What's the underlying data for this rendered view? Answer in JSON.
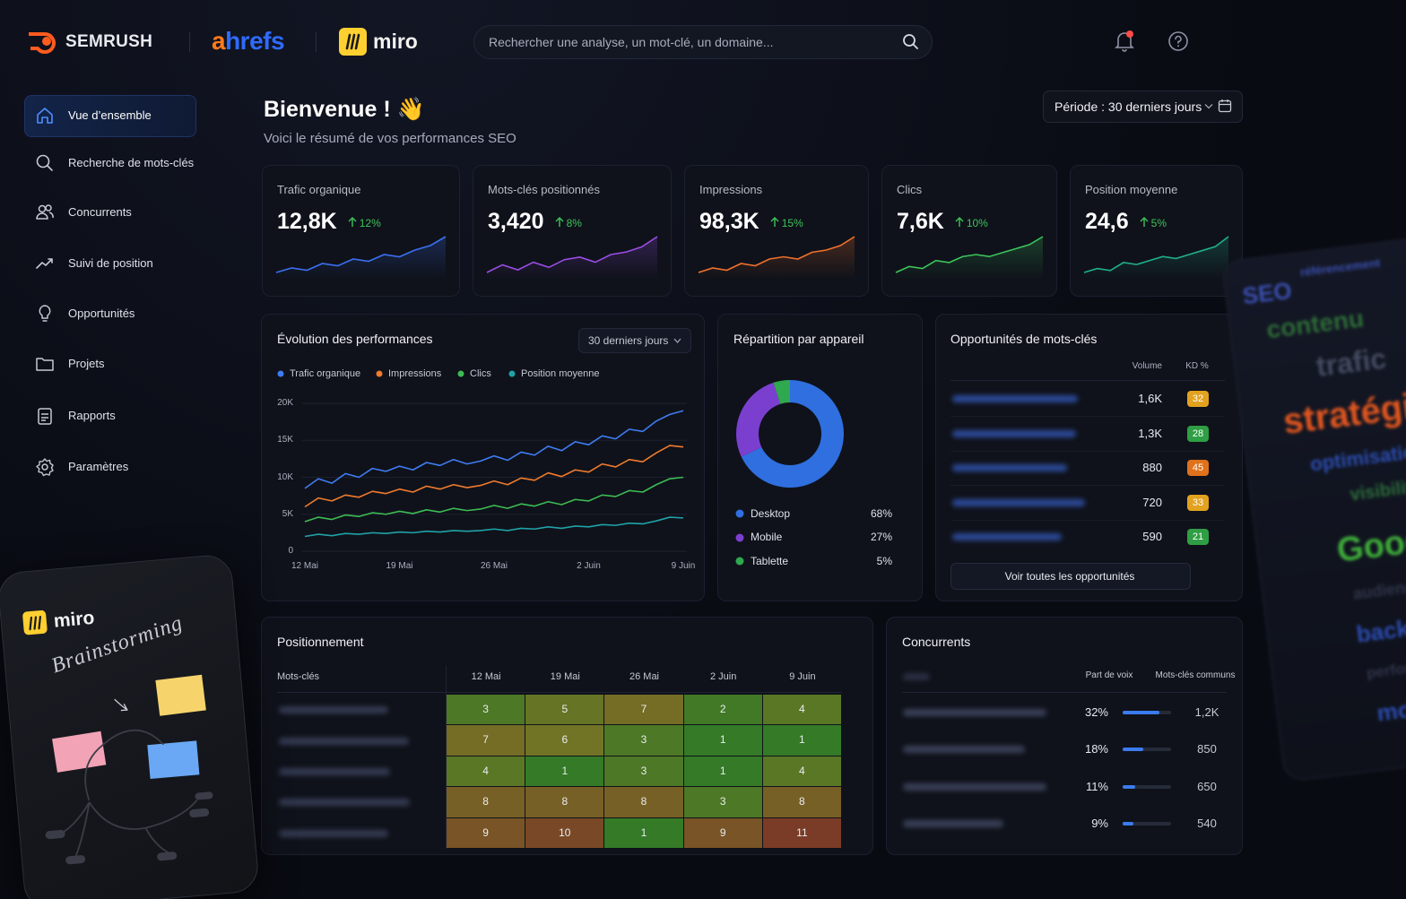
{
  "brands": [
    "SEMRUSH",
    "ahrefs",
    "miro"
  ],
  "search_placeholder": "Rechercher une analyse, un mot-clé, un domaine...",
  "nav": [
    "Vue d’ensemble",
    "Recherche de mots-clés",
    "Concurrents",
    "Suivi de position",
    "Opportunités",
    "Projets",
    "Rapports",
    "Paramètres"
  ],
  "header": {
    "title": "Bienvenue ! 👋",
    "subtitle": "Voici le résumé de vos performances SEO",
    "period": "Période : 30 derniers jours"
  },
  "kpis": [
    {
      "label": "Trafic organique",
      "value": 12800,
      "value_label": "12,8K",
      "change": 12,
      "change_label": "12%",
      "color": "#3b6ff0",
      "trend": [
        5,
        6,
        5.5,
        7,
        6.5,
        8,
        7.5,
        9,
        8.5,
        10,
        11,
        13
      ]
    },
    {
      "label": "Mots-clés positionnés",
      "value": 3420,
      "value_label": "3,420",
      "change": 8,
      "change_label": "8%",
      "color": "#9b4de8",
      "trend": [
        5,
        6.5,
        5.5,
        7,
        6,
        7.5,
        8,
        7,
        8.5,
        9,
        10,
        12
      ]
    },
    {
      "label": "Impressions",
      "value": 98300,
      "value_label": "98,3K",
      "change": 15,
      "change_label": "15%",
      "color": "#f0702a",
      "trend": [
        4,
        5,
        4.5,
        6,
        5.5,
        7,
        7.5,
        7,
        8.5,
        9,
        10,
        12
      ]
    },
    {
      "label": "Clics",
      "value": 7600,
      "value_label": "7,6K",
      "change": 10,
      "change_label": "10%",
      "color": "#3cc45a",
      "trend": [
        4,
        5.5,
        5,
        7,
        6.5,
        8,
        8.5,
        8,
        9,
        10,
        11,
        13
      ]
    },
    {
      "label": "Position moyenne",
      "value": 24.6,
      "value_label": "24,6",
      "change": 5,
      "change_label": "5%",
      "color": "#1fb08a",
      "trend": [
        4,
        5,
        4.5,
        6.5,
        6,
        7,
        8,
        7.5,
        8.5,
        9.5,
        10.5,
        13
      ]
    }
  ],
  "chart_data": [
    {
      "type": "line",
      "title": "Évolution des performances",
      "range_selector": "30 derniers jours",
      "categories": [
        "12 Mai",
        null,
        null,
        null,
        null,
        null,
        null,
        "19 Mai",
        null,
        null,
        null,
        null,
        null,
        null,
        "26 Mai",
        null,
        null,
        null,
        null,
        null,
        null,
        "2 Juin",
        null,
        null,
        null,
        null,
        null,
        null,
        "9 Juin"
      ],
      "series": [
        {
          "name": "Trafic organique",
          "color": "#3f7cf4",
          "values": [
            8500,
            9800,
            9200,
            10500,
            10000,
            11200,
            10800,
            11500,
            11000,
            12000,
            11600,
            12400,
            11800,
            12200,
            12900,
            12300,
            13400,
            13000,
            14200,
            13600,
            14800,
            14400,
            15600,
            15200,
            16500,
            16200,
            17600,
            18500,
            19000
          ]
        },
        {
          "name": "Impressions",
          "color": "#f07a2e",
          "values": [
            6000,
            7200,
            6800,
            7600,
            7300,
            8100,
            7800,
            8400,
            8000,
            8800,
            8400,
            9000,
            8600,
            8900,
            9500,
            9000,
            9900,
            9600,
            10600,
            10100,
            11000,
            10700,
            11800,
            11400,
            12400,
            12100,
            13300,
            14300,
            14100
          ]
        },
        {
          "name": "Clics",
          "color": "#3dbb54",
          "values": [
            4000,
            4600,
            4300,
            4900,
            4700,
            5200,
            5000,
            5400,
            5100,
            5600,
            5300,
            5800,
            5500,
            5700,
            6200,
            5800,
            6400,
            6100,
            6700,
            6300,
            7000,
            6800,
            7600,
            7400,
            8200,
            8000,
            9000,
            9800,
            10000
          ]
        },
        {
          "name": "Position moyenne",
          "color": "#1fa3a8",
          "values": [
            2000,
            2300,
            2100,
            2400,
            2300,
            2500,
            2400,
            2600,
            2500,
            2700,
            2600,
            2800,
            2700,
            2800,
            3000,
            2800,
            3100,
            3000,
            3300,
            3100,
            3400,
            3300,
            3600,
            3500,
            3800,
            3700,
            4100,
            4600,
            4500
          ]
        }
      ],
      "ylim": [
        0,
        20000
      ],
      "yticks": [
        0,
        {
          "value": 5000,
          "label": "5K"
        },
        {
          "value": 10000,
          "label": "10K"
        },
        {
          "value": 15000,
          "label": "15K"
        },
        {
          "value": 20000,
          "label": "20K"
        }
      ],
      "grid": true
    },
    {
      "type": "pie",
      "title": "Répartition par appareil",
      "donut": true,
      "categories": [
        "Desktop",
        "Mobile",
        "Tablette"
      ],
      "values": [
        68,
        27,
        5
      ],
      "value_labels": [
        "68%",
        "27%",
        "5%"
      ],
      "colors": [
        "#2f6fe0",
        "#7b3fd0",
        "#2fa84f"
      ]
    }
  ],
  "keyword_opportunities": {
    "title": "Opportunités de mots-clés",
    "columns": [
      "Volume",
      "KD %"
    ],
    "rows": [
      {
        "volume": 1600,
        "volume_label": "1,6K",
        "kd": 32,
        "kd_color": "#e2a21f"
      },
      {
        "volume": 1300,
        "volume_label": "1,3K",
        "kd": 28,
        "kd_color": "#2f9e44"
      },
      {
        "volume": 880,
        "kd": 45,
        "kd_color": "#e0721c"
      },
      {
        "volume": 720,
        "kd": 33,
        "kd_color": "#e2a21f"
      },
      {
        "volume": 590,
        "kd": 21,
        "kd_color": "#2f9e44"
      }
    ],
    "button": "Voir toutes les opportunités"
  },
  "positioning": {
    "title": "Positionnement",
    "row_header": "Mots-clés",
    "dates": [
      "12 Mai",
      "19 Mai",
      "26 Mai",
      "2 Juin",
      "9 Juin"
    ],
    "rows": [
      [
        3,
        5,
        7,
        2,
        4
      ],
      [
        7,
        6,
        3,
        1,
        1
      ],
      [
        4,
        1,
        3,
        1,
        4
      ],
      [
        8,
        8,
        8,
        3,
        8
      ],
      [
        9,
        10,
        1,
        9,
        11
      ]
    ]
  },
  "competitors": {
    "title": "Concurrents",
    "columns": [
      "Part de voix",
      "Mots-clés communs"
    ],
    "rows": [
      {
        "share": 32,
        "share_label": "32%",
        "common": 1200,
        "common_label": "1,2K"
      },
      {
        "share": 18,
        "share_label": "18%",
        "common": 850
      },
      {
        "share": 11,
        "share_label": "11%",
        "common": 650
      },
      {
        "share": 9,
        "share_label": "9%",
        "common": 540
      }
    ]
  },
  "miro_card": {
    "brand": "miro",
    "title": "Brainstorming"
  },
  "word_cloud": [
    {
      "text": "SEO",
      "color": "#3b4fb0"
    },
    {
      "text": "référencement",
      "color": "#3b4fb0"
    },
    {
      "text": "contenu",
      "color": "#2d6b36"
    },
    {
      "text": "trafic",
      "color": "#444a60"
    },
    {
      "text": "stratégie",
      "color": "#e0561f"
    },
    {
      "text": "optimisation",
      "color": "#2b4cb0"
    },
    {
      "text": "visibilité",
      "color": "#2b6b3a"
    },
    {
      "text": "Google",
      "color": "#3fae3a"
    },
    {
      "text": "audience",
      "color": "#2e3348"
    },
    {
      "text": "backlinks",
      "color": "#2b4cb0"
    },
    {
      "text": "performance",
      "color": "#2e3348"
    },
    {
      "text": "mots-clés",
      "color": "#2b4cb0"
    }
  ]
}
